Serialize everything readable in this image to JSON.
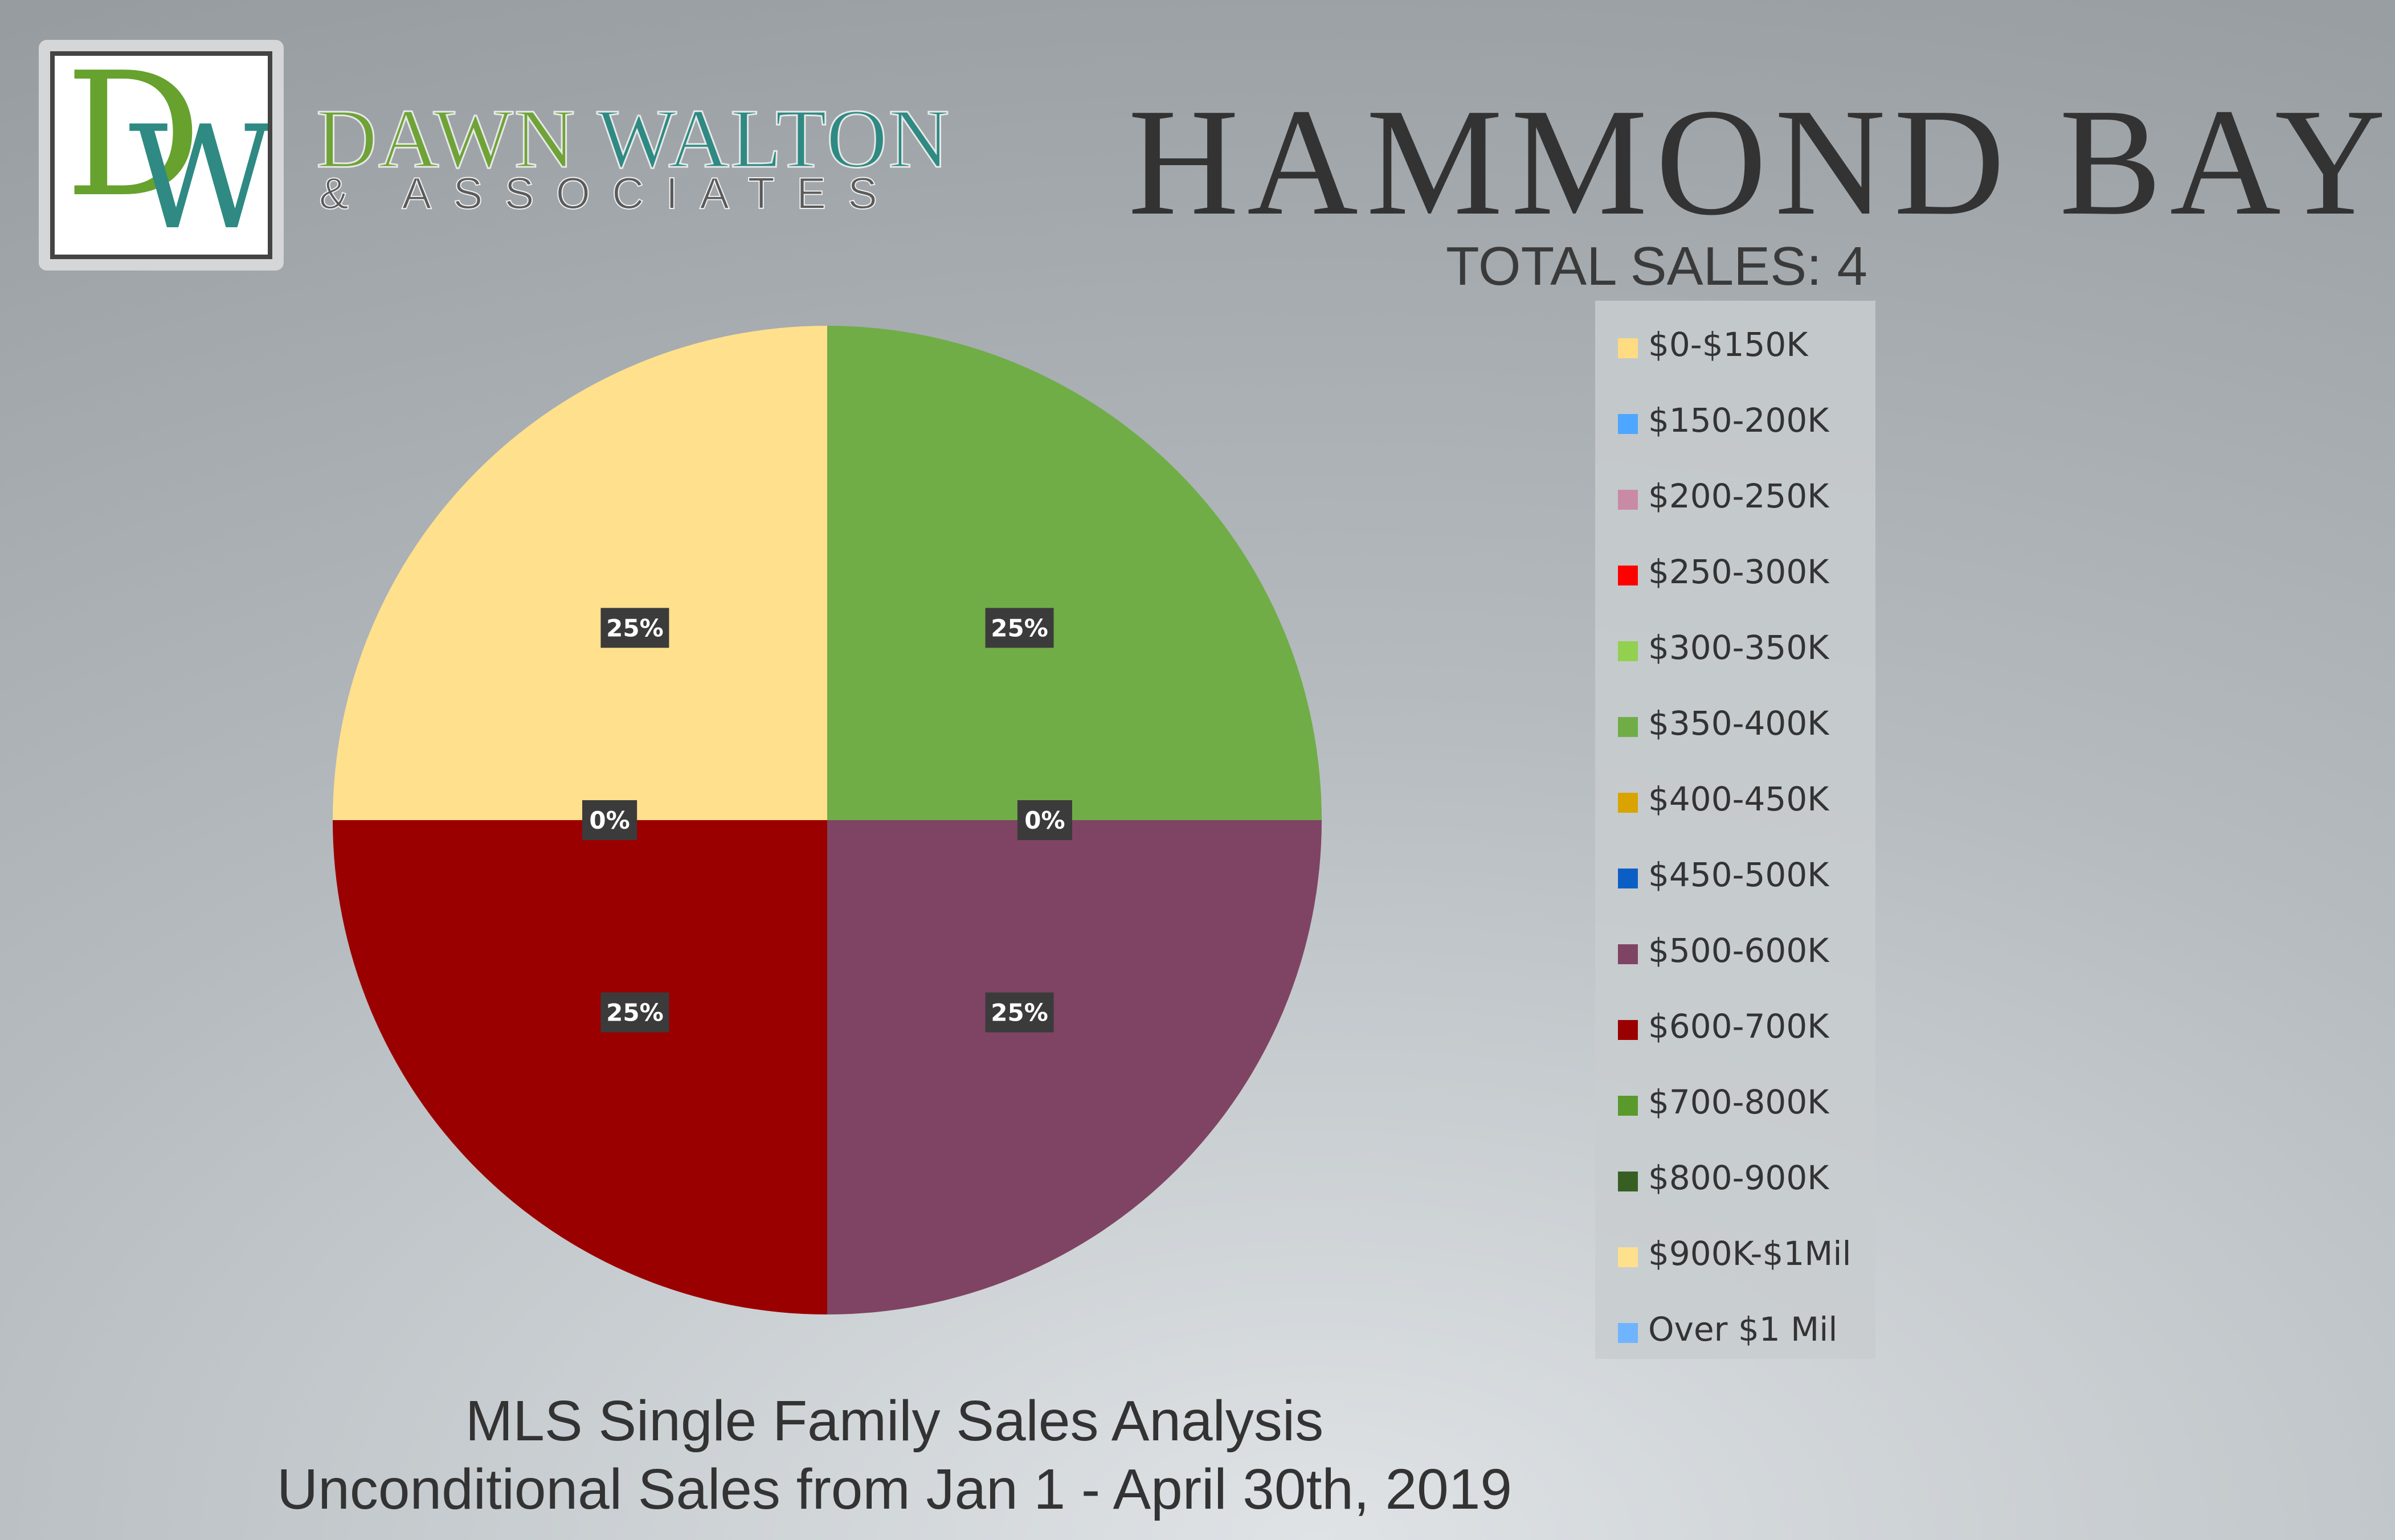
{
  "brand": {
    "monogram_d": "D",
    "monogram_w": "W",
    "name_part1": "DAWN",
    "name_part2": "WALTON",
    "tagline": "& ASSOCIATES"
  },
  "title": "HAMMOND BAY",
  "subtitle": "TOTAL SALES: 4",
  "footer": {
    "line1": "MLS Single Family Sales Analysis",
    "line2": "Unconditional Sales from Jan 1 - April 30th, 2019"
  },
  "colors": {
    "$0-$150K": "#ffdc82",
    "$150-200K": "#4da6ff",
    "$200-250K": "#c98aa6",
    "$250-300K": "#ff0000",
    "$300-350K": "#92d050",
    "$350-400K": "#70ad47",
    "$400-450K": "#d9a300",
    "$450-500K": "#0b5fc4",
    "$500-600K": "#7f4463",
    "$600-700K": "#9b0000",
    "$700-800K": "#5a9a2d",
    "$800-900K": "#375f23",
    "$900K-$1Mil": "#ffe08c",
    "Over $1 Mil": "#6fb4ff"
  },
  "chart_data": {
    "type": "pie",
    "title": "HAMMOND BAY",
    "subtitle": "TOTAL SALES: 4",
    "legend_position": "right",
    "categories": [
      "$0-$150K",
      "$150-200K",
      "$200-250K",
      "$250-300K",
      "$300-350K",
      "$350-400K",
      "$400-450K",
      "$450-500K",
      "$500-600K",
      "$600-700K",
      "$700-800K",
      "$800-900K",
      "$900K-$1Mil",
      "Over $1 Mil"
    ],
    "values": [
      0,
      0,
      0,
      0,
      0,
      1,
      0,
      0,
      1,
      1,
      0,
      0,
      1,
      0
    ],
    "percent_labels": [
      {
        "category": "$900K-$1Mil",
        "label": "25%"
      },
      {
        "category": "$0-$150K",
        "label": "0%"
      },
      {
        "category": "$350-400K",
        "label": "25%"
      },
      {
        "category": "$400-450K",
        "label": "0%"
      },
      {
        "category": "$500-600K",
        "label": "25%"
      },
      {
        "category": "$600-700K",
        "label": "25%"
      },
      {
        "category": "$250-300K",
        "label": "0%"
      }
    ]
  }
}
